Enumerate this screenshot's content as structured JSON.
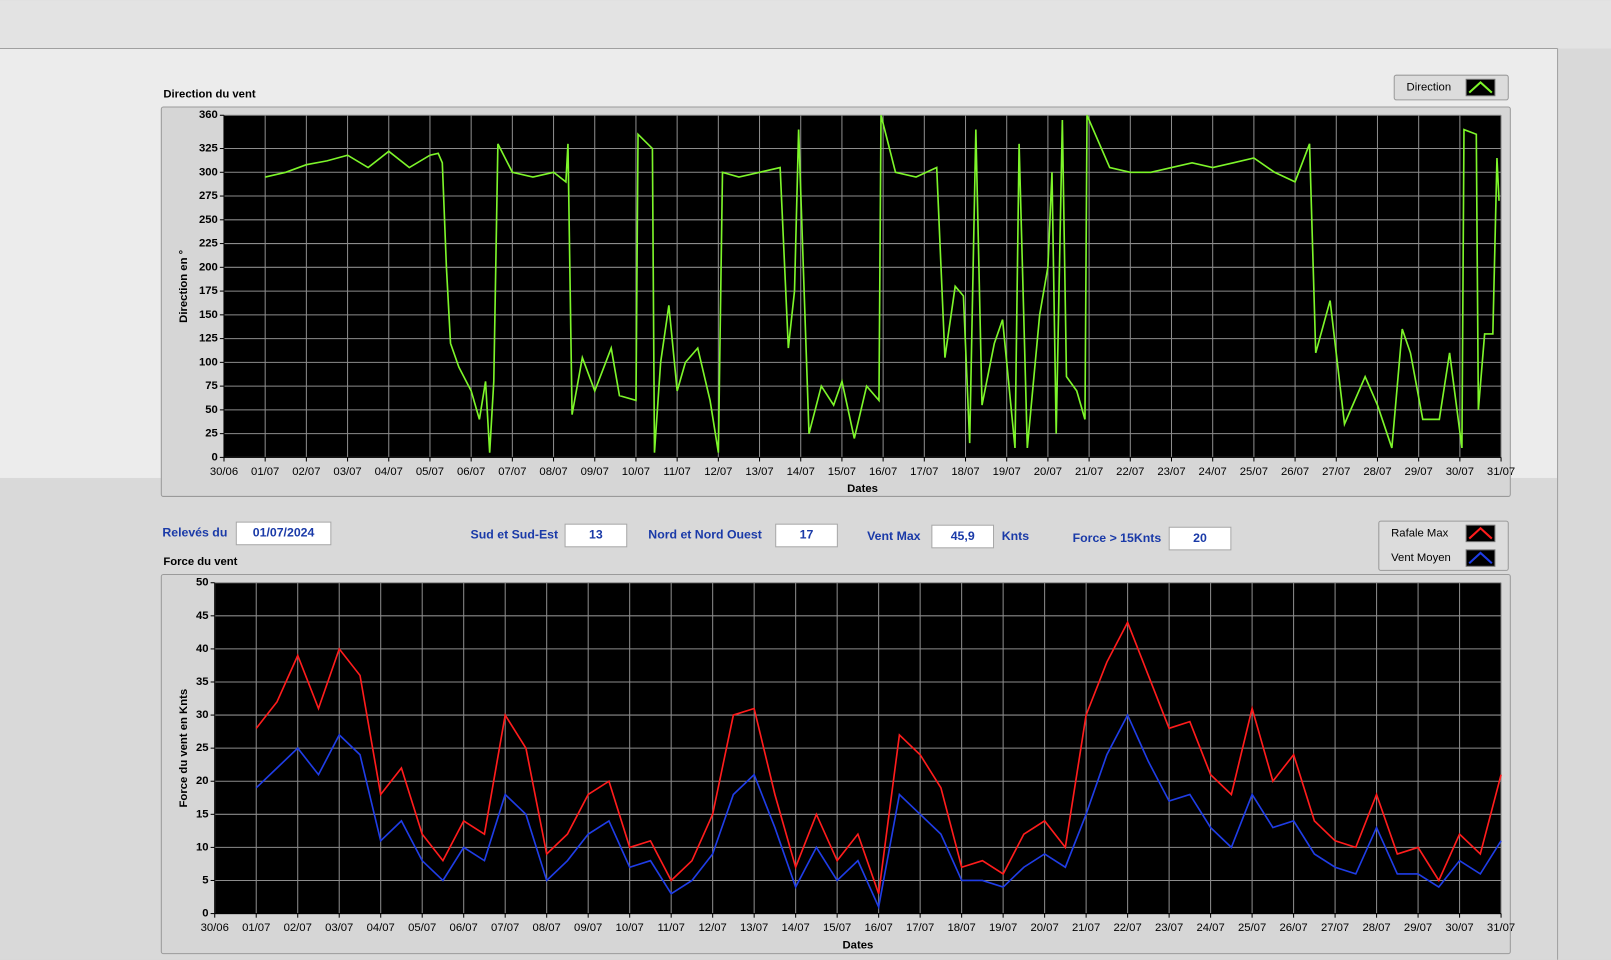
{
  "chart_data": [
    {
      "type": "line",
      "title": "Direction du vent",
      "x_label": "Dates",
      "y_label": "Direction en °",
      "xlim": [
        0,
        31
      ],
      "xticks": [
        {
          "value": 0,
          "label": "30/06"
        },
        {
          "value": 1,
          "label": "01/07"
        },
        {
          "value": 2,
          "label": "02/07"
        },
        {
          "value": 3,
          "label": "03/07"
        },
        {
          "value": 4,
          "label": "04/07"
        },
        {
          "value": 5,
          "label": "05/07"
        },
        {
          "value": 6,
          "label": "06/07"
        },
        {
          "value": 7,
          "label": "07/07"
        },
        {
          "value": 8,
          "label": "08/07"
        },
        {
          "value": 9,
          "label": "09/07"
        },
        {
          "value": 10,
          "label": "10/07"
        },
        {
          "value": 11,
          "label": "11/07"
        },
        {
          "value": 12,
          "label": "12/07"
        },
        {
          "value": 13,
          "label": "13/07"
        },
        {
          "value": 14,
          "label": "14/07"
        },
        {
          "value": 15,
          "label": "15/07"
        },
        {
          "value": 16,
          "label": "16/07"
        },
        {
          "value": 17,
          "label": "17/07"
        },
        {
          "value": 18,
          "label": "18/07"
        },
        {
          "value": 19,
          "label": "19/07"
        },
        {
          "value": 20,
          "label": "20/07"
        },
        {
          "value": 21,
          "label": "21/07"
        },
        {
          "value": 22,
          "label": "22/07"
        },
        {
          "value": 23,
          "label": "23/07"
        },
        {
          "value": 24,
          "label": "24/07"
        },
        {
          "value": 25,
          "label": "25/07"
        },
        {
          "value": 26,
          "label": "26/07"
        },
        {
          "value": 27,
          "label": "27/07"
        },
        {
          "value": 28,
          "label": "28/07"
        },
        {
          "value": 29,
          "label": "29/07"
        },
        {
          "value": 30,
          "label": "30/07"
        },
        {
          "value": 31,
          "label": "31/07"
        }
      ],
      "ylim": [
        0,
        360
      ],
      "yticks": [
        0,
        25,
        50,
        75,
        100,
        125,
        150,
        175,
        200,
        225,
        250,
        275,
        300,
        325,
        360
      ],
      "grid": true,
      "x": [
        1,
        1.5,
        2,
        2.5,
        3,
        3.5,
        4,
        4.5,
        5,
        5.2,
        5.3,
        5.4,
        5.5,
        5.7,
        6,
        6.2,
        6.35,
        6.45,
        6.55,
        6.65,
        7,
        7.5,
        8,
        8.3,
        8.35,
        8.45,
        8.7,
        9,
        9.4,
        9.6,
        10,
        10.05,
        10.4,
        10.45,
        10.6,
        10.8,
        11,
        11.2,
        11.5,
        11.8,
        12,
        12.1,
        12.5,
        13,
        13.5,
        13.7,
        13.85,
        13.95,
        14.2,
        14.5,
        14.8,
        15,
        15.3,
        15.6,
        15.9,
        15.95,
        16.3,
        16.8,
        17.3,
        17.5,
        17.75,
        17.95,
        18.1,
        18.25,
        18.4,
        18.7,
        18.9,
        19.2,
        19.3,
        19.5,
        19.8,
        20,
        20.1,
        20.2,
        20.35,
        20.45,
        20.7,
        20.9,
        20.95,
        21.5,
        22,
        22.5,
        23,
        23.5,
        24,
        24.5,
        25,
        25.5,
        26,
        26.35,
        26.5,
        26.85,
        27.2,
        27.7,
        28,
        28.35,
        28.6,
        28.8,
        29.1,
        29.5,
        29.75,
        30.05,
        30.1,
        30.4,
        30.45,
        30.6,
        30.8,
        30.9,
        30.95
      ],
      "series": [
        {
          "name": "Direction",
          "color": "#7df52a",
          "values": [
            295,
            300,
            308,
            312,
            318,
            305,
            322,
            305,
            318,
            320,
            310,
            200,
            120,
            95,
            70,
            40,
            80,
            5,
            80,
            330,
            300,
            295,
            300,
            290,
            330,
            45,
            105,
            70,
            115,
            65,
            60,
            340,
            325,
            5,
            100,
            160,
            70,
            100,
            115,
            60,
            5,
            300,
            295,
            300,
            305,
            115,
            175,
            345,
            25,
            75,
            55,
            80,
            20,
            75,
            60,
            360,
            300,
            295,
            305,
            105,
            180,
            170,
            15,
            345,
            55,
            120,
            145,
            10,
            330,
            10,
            150,
            200,
            300,
            25,
            355,
            85,
            70,
            40,
            360,
            305,
            300,
            300,
            305,
            310,
            305,
            310,
            315,
            300,
            290,
            330,
            110,
            165,
            35,
            85,
            55,
            10,
            135,
            110,
            40,
            40,
            110,
            10,
            345,
            340,
            50,
            130,
            130,
            315,
            270
          ]
        }
      ]
    },
    {
      "type": "line",
      "title": "Force du vent",
      "x_label": "Dates",
      "y_label": "Force du vent en Knts",
      "xlim": [
        0,
        31
      ],
      "xticks": [
        {
          "value": 0,
          "label": "30/06"
        },
        {
          "value": 1,
          "label": "01/07"
        },
        {
          "value": 2,
          "label": "02/07"
        },
        {
          "value": 3,
          "label": "03/07"
        },
        {
          "value": 4,
          "label": "04/07"
        },
        {
          "value": 5,
          "label": "05/07"
        },
        {
          "value": 6,
          "label": "06/07"
        },
        {
          "value": 7,
          "label": "07/07"
        },
        {
          "value": 8,
          "label": "08/07"
        },
        {
          "value": 9,
          "label": "09/07"
        },
        {
          "value": 10,
          "label": "10/07"
        },
        {
          "value": 11,
          "label": "11/07"
        },
        {
          "value": 12,
          "label": "12/07"
        },
        {
          "value": 13,
          "label": "13/07"
        },
        {
          "value": 14,
          "label": "14/07"
        },
        {
          "value": 15,
          "label": "15/07"
        },
        {
          "value": 16,
          "label": "16/07"
        },
        {
          "value": 17,
          "label": "17/07"
        },
        {
          "value": 18,
          "label": "18/07"
        },
        {
          "value": 19,
          "label": "19/07"
        },
        {
          "value": 20,
          "label": "20/07"
        },
        {
          "value": 21,
          "label": "21/07"
        },
        {
          "value": 22,
          "label": "22/07"
        },
        {
          "value": 23,
          "label": "23/07"
        },
        {
          "value": 24,
          "label": "24/07"
        },
        {
          "value": 25,
          "label": "25/07"
        },
        {
          "value": 26,
          "label": "26/07"
        },
        {
          "value": 27,
          "label": "27/07"
        },
        {
          "value": 28,
          "label": "28/07"
        },
        {
          "value": 29,
          "label": "29/07"
        },
        {
          "value": 30,
          "label": "30/07"
        },
        {
          "value": 31,
          "label": "31/07"
        }
      ],
      "ylim": [
        0,
        50
      ],
      "yticks": [
        0,
        5,
        10,
        15,
        20,
        25,
        30,
        35,
        40,
        45,
        50
      ],
      "grid": true,
      "x": [
        1,
        1.5,
        2,
        2.5,
        3,
        3.5,
        4,
        4.5,
        5,
        5.5,
        6,
        6.5,
        7,
        7.5,
        8,
        8.5,
        9,
        9.5,
        10,
        10.5,
        11,
        11.5,
        12,
        12.5,
        13,
        13.5,
        14,
        14.5,
        15,
        15.5,
        16,
        16.5,
        17,
        17.5,
        18,
        18.5,
        19,
        19.5,
        20,
        20.5,
        21,
        21.5,
        22,
        22.5,
        23,
        23.5,
        24,
        24.5,
        25,
        25.5,
        26,
        26.5,
        27,
        27.5,
        28,
        28.5,
        29,
        29.5,
        30,
        30.5,
        31
      ],
      "series": [
        {
          "name": "Rafale Max",
          "color": "#ff1c1c",
          "values": [
            28,
            32,
            39,
            31,
            40,
            36,
            18,
            22,
            12,
            8,
            14,
            12,
            30,
            25,
            9,
            12,
            18,
            20,
            10,
            11,
            5,
            8,
            15,
            30,
            31,
            18,
            7,
            15,
            8,
            12,
            3,
            27,
            24,
            19,
            7,
            8,
            6,
            12,
            14,
            10,
            30,
            38,
            44,
            36,
            28,
            29,
            21,
            18,
            31,
            20,
            24,
            14,
            11,
            10,
            18,
            9,
            10,
            5,
            12,
            9,
            21
          ]
        },
        {
          "name": "Vent Moyen",
          "color": "#1f3de6",
          "values": [
            19,
            22,
            25,
            21,
            27,
            24,
            11,
            14,
            8,
            5,
            10,
            8,
            18,
            15,
            5,
            8,
            12,
            14,
            7,
            8,
            3,
            5,
            9,
            18,
            21,
            13,
            4,
            10,
            5,
            8,
            1,
            18,
            15,
            12,
            5,
            5,
            4,
            7,
            9,
            7,
            15,
            24,
            30,
            23,
            17,
            18,
            13,
            10,
            18,
            13,
            14,
            9,
            7,
            6,
            13,
            6,
            6,
            4,
            8,
            6,
            11
          ]
        }
      ]
    }
  ],
  "panel": {
    "fields": [
      {
        "label": "Relevés du",
        "value": "01/07/2024"
      },
      {
        "label": "Sud et Sud-Est",
        "value": "13"
      },
      {
        "label": "Nord et Nord Ouest",
        "value": "17"
      },
      {
        "label": "Vent Max",
        "value": "45,9",
        "unit": "Knts"
      },
      {
        "label": "Force > 15Knts",
        "value": "20"
      }
    ]
  }
}
